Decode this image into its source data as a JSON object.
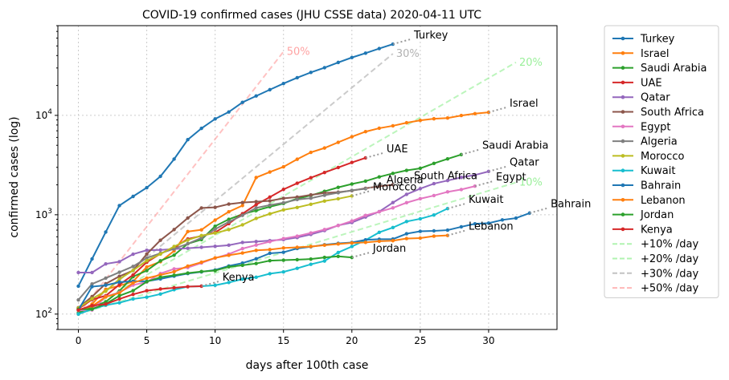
{
  "chart_data": {
    "type": "line",
    "title": "COVID-19 confirmed cases (JHU CSSE data) 2020-04-11 UTC",
    "xlabel": "days after 100th case",
    "ylabel": "confirmed cases (log)",
    "xlim": [
      -1.5,
      35
    ],
    "ylim": [
      70,
      80000
    ],
    "yscale": "log",
    "grid": true,
    "legend_position": "outside right",
    "x_ticks": [
      "0",
      "5",
      "10",
      "15",
      "20",
      "25",
      "30"
    ],
    "y_ticks": [
      "10^2",
      "10^3",
      "10^4"
    ],
    "series": [
      {
        "name": "Turkey",
        "color": "#1f77b4",
        "end_label": "Turkey",
        "values": [
          191,
          359,
          670,
          1236,
          1529,
          1872,
          2433,
          3629,
          5698,
          7402,
          9217,
          10827,
          13531,
          15679,
          18135,
          20921,
          23934,
          27069,
          30217,
          34109,
          38226,
          42282,
          47029,
          52167
        ]
      },
      {
        "name": "Israel",
        "color": "#ff7f0e",
        "end_label": "Israel",
        "values": [
          100,
          126,
          178,
          193,
          213,
          298,
          337,
          433,
          677,
          705,
          883,
          1071,
          1238,
          2369,
          2693,
          3035,
          3619,
          4247,
          4695,
          5358,
          6092,
          6857,
          7428,
          7851,
          8430,
          8904,
          9248,
          9404,
          9968,
          10408,
          10743
        ]
      },
      {
        "name": "Saudi Arabia",
        "color": "#2ca02c",
        "end_label": "Saudi Arabia",
        "values": [
          103,
          118,
          133,
          171,
          238,
          274,
          344,
          392,
          511,
          562,
          767,
          900,
          1012,
          1104,
          1203,
          1299,
          1453,
          1563,
          1720,
          1885,
          2039,
          2179,
          2402,
          2605,
          2795,
          2932,
          3287,
          3651,
          4033
        ]
      },
      {
        "name": "UAE",
        "color": "#d62728",
        "end_label": "UAE",
        "values": [
          113,
          140,
          153,
          198,
          248,
          333,
          405,
          468,
          570,
          611,
          664,
          814,
          1024,
          1264,
          1505,
          1799,
          2076,
          2359,
          2659,
          2990,
          3360,
          3736
        ]
      },
      {
        "name": "Qatar",
        "color": "#9467bd",
        "end_label": "Qatar",
        "values": [
          262,
          262,
          320,
          337,
          401,
          439,
          442,
          452,
          460,
          470,
          481,
          494,
          526,
          537,
          549,
          562,
          590,
          634,
          693,
          781,
          835,
          949,
          1075,
          1325,
          1604,
          1832,
          2057,
          2210,
          2376,
          2512,
          2728
        ]
      },
      {
        "name": "South Africa",
        "color": "#8c564b",
        "end_label": "South Africa",
        "values": [
          116,
          150,
          202,
          240,
          274,
          402,
          554,
          709,
          927,
          1170,
          1187,
          1280,
          1326,
          1353,
          1380,
          1462,
          1505,
          1585,
          1655,
          1686,
          1749,
          1845,
          1934,
          2003
        ]
      },
      {
        "name": "Egypt",
        "color": "#e377c2",
        "end_label": "Egypt",
        "values": [
          109,
          110,
          150,
          166,
          196,
          210,
          256,
          285,
          294,
          327,
          366,
          402,
          456,
          495,
          536,
          576,
          609,
          656,
          710,
          779,
          865,
          985,
          1070,
          1173,
          1322,
          1450,
          1560,
          1699,
          1794,
          1939
        ]
      },
      {
        "name": "Algeria",
        "color": "#7f7f7f",
        "end_label": "Algeria",
        "values": [
          139,
          201,
          230,
          264,
          302,
          367,
          409,
          454,
          511,
          584,
          716,
          847,
          986,
          1171,
          1251,
          1320,
          1423,
          1468,
          1572,
          1666,
          1761,
          1825
        ]
      },
      {
        "name": "Morocco",
        "color": "#bcbd22",
        "end_label": "Morocco",
        "values": [
          115,
          143,
          170,
          225,
          275,
          345,
          402,
          479,
          556,
          617,
          654,
          708,
          791,
          919,
          1021,
          1120,
          1184,
          1275,
          1374,
          1448,
          1545
        ]
      },
      {
        "name": "Kuwait",
        "color": "#17becf",
        "end_label": "Kuwait",
        "values": [
          100,
          112,
          123,
          130,
          142,
          148,
          159,
          176,
          189,
          191,
          195,
          208,
          225,
          235,
          255,
          266,
          289,
          317,
          342,
          417,
          479,
          556,
          665,
          743,
          855,
          910,
          993,
          1154
        ]
      },
      {
        "name": "Bahrain",
        "color": "#1f77b4",
        "end_label": "Bahrain",
        "values": [
          110,
          189,
          195,
          210,
          214,
          214,
          226,
          241,
          256,
          266,
          278,
          305,
          326,
          360,
          409,
          419,
          458,
          476,
          499,
          515,
          526,
          559,
          567,
          569,
          644,
          681,
          688,
          700,
          756,
          811,
          823,
          887,
          925,
          1040
        ]
      },
      {
        "name": "Lebanon",
        "color": "#ff7f0e",
        "end_label": "Lebanon",
        "values": [
          110,
          120,
          149,
          163,
          206,
          230,
          248,
          267,
          304,
          333,
          368,
          391,
          412,
          438,
          446,
          463,
          470,
          479,
          494,
          508,
          520,
          527,
          541,
          548,
          576,
          582,
          609,
          619
        ]
      },
      {
        "name": "Jordan",
        "color": "#2ca02c",
        "end_label": "Jordan",
        "values": [
          112,
          112,
          127,
          153,
          172,
          212,
          235,
          246,
          259,
          268,
          274,
          299,
          310,
          323,
          345,
          349,
          353,
          358,
          372,
          381,
          372
        ]
      },
      {
        "name": "Kenya",
        "color": "#d62728",
        "end_label": "Kenya",
        "values": [
          110,
          122,
          126,
          142,
          158,
          172,
          179,
          184,
          189,
          191
        ]
      },
      {
        "name": "+10% /day",
        "color": "#90ee90",
        "dashed": true,
        "rate": 0.1,
        "days": 32,
        "end_label": "10%"
      },
      {
        "name": "+20% /day",
        "color": "#90ee90",
        "dashed": true,
        "rate": 0.2,
        "days": 32,
        "end_label": "20%"
      },
      {
        "name": "+30% /day",
        "color": "#a9a9a9",
        "dashed": true,
        "rate": 0.3,
        "days": 23,
        "end_label": "30%"
      },
      {
        "name": "+50% /day",
        "color": "#ff9999",
        "dashed": true,
        "rate": 0.5,
        "days": 15,
        "end_label": "50%"
      }
    ]
  }
}
